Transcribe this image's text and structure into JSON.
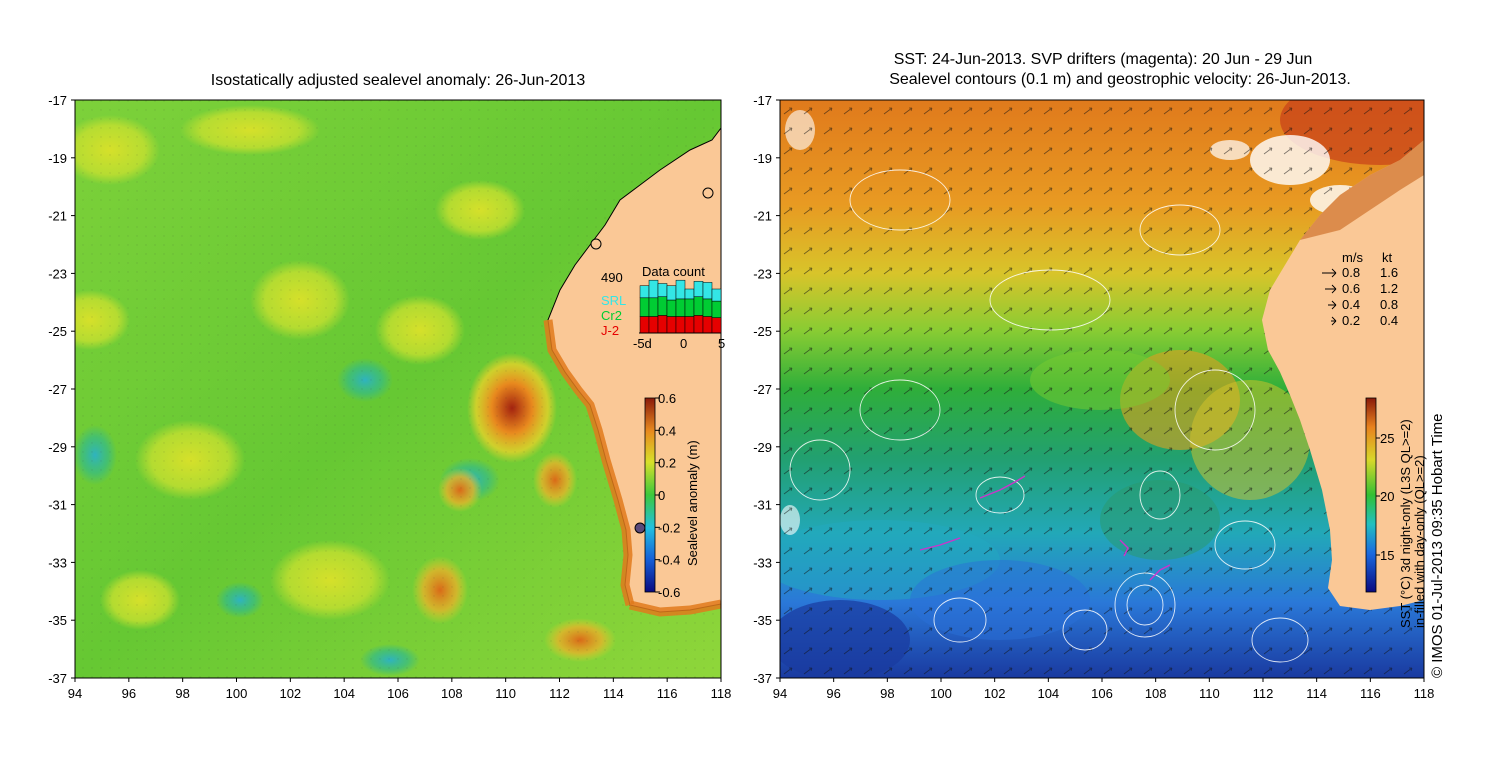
{
  "left_panel": {
    "title": "Isostatically adjusted sealevel anomaly: 26-Jun-2013",
    "x_ticks": [
      "94",
      "96",
      "98",
      "100",
      "102",
      "104",
      "106",
      "108",
      "110",
      "112",
      "114",
      "116",
      "118"
    ],
    "y_ticks": [
      "-17",
      "-19",
      "-21",
      "-23",
      "-25",
      "-27",
      "-29",
      "-31",
      "-33",
      "-35",
      "-37"
    ],
    "colorbar": {
      "label": "Sealevel anomaly (m)",
      "ticks": [
        "0.6",
        "0.4",
        "0.2",
        "0",
        "-0.2",
        "-0.4",
        "-0.6"
      ],
      "range": [
        -0.6,
        0.6
      ]
    },
    "data_count": {
      "title": "Data count",
      "max_label": "490",
      "legend": [
        "SRL",
        "Cr2",
        "J-2"
      ],
      "legend_colors": [
        "#33e6e6",
        "#00cc33",
        "#e60000"
      ],
      "x_labels": [
        "-5d",
        "0",
        "5"
      ],
      "bars": [
        {
          "srl": 0.22,
          "cr2": 0.34,
          "j2": 0.3
        },
        {
          "srl": 0.32,
          "cr2": 0.34,
          "j2": 0.3
        },
        {
          "srl": 0.24,
          "cr2": 0.34,
          "j2": 0.32
        },
        {
          "srl": 0.26,
          "cr2": 0.3,
          "j2": 0.3
        },
        {
          "srl": 0.34,
          "cr2": 0.32,
          "j2": 0.3
        },
        {
          "srl": 0.18,
          "cr2": 0.32,
          "j2": 0.3
        },
        {
          "srl": 0.28,
          "cr2": 0.34,
          "j2": 0.32
        },
        {
          "srl": 0.3,
          "cr2": 0.32,
          "j2": 0.3
        },
        {
          "srl": 0.22,
          "cr2": 0.3,
          "j2": 0.28
        }
      ]
    }
  },
  "right_panel": {
    "title_line1": "SST: 24-Jun-2013. SVP drifters (magenta): 20 Jun - 29 Jun",
    "title_line2": "Sealevel contours (0.1 m) and geostrophic velocity: 26-Jun-2013.",
    "x_ticks": [
      "94",
      "96",
      "98",
      "100",
      "102",
      "104",
      "106",
      "108",
      "110",
      "112",
      "114",
      "116",
      "118"
    ],
    "y_ticks": [
      "-17",
      "-19",
      "-21",
      "-23",
      "-25",
      "-27",
      "-29",
      "-31",
      "-33",
      "-35",
      "-37"
    ],
    "colorbar": {
      "label_line1": "SST (°C) 3d night-only (L3S QL>=2)",
      "label_line2": "in-filled with day-only (QL>=2)",
      "ticks": [
        "25",
        "20",
        "15"
      ]
    },
    "velocity_legend": {
      "header_ms": "m/s",
      "header_kt": "kt",
      "rows": [
        {
          "ms": "0.8",
          "kt": "1.6"
        },
        {
          "ms": "0.6",
          "kt": "1.2"
        },
        {
          "ms": "0.4",
          "kt": "0.8"
        },
        {
          "ms": "0.2",
          "kt": "0.4"
        }
      ]
    }
  },
  "credit": "© IMOS 01-Jul-2013 09:35 Hobart Time",
  "colors": {
    "land": "#fac896",
    "sla_base": "#66cc33",
    "sst_warm": "#e68a1a",
    "sst_cool": "#22aa66"
  }
}
